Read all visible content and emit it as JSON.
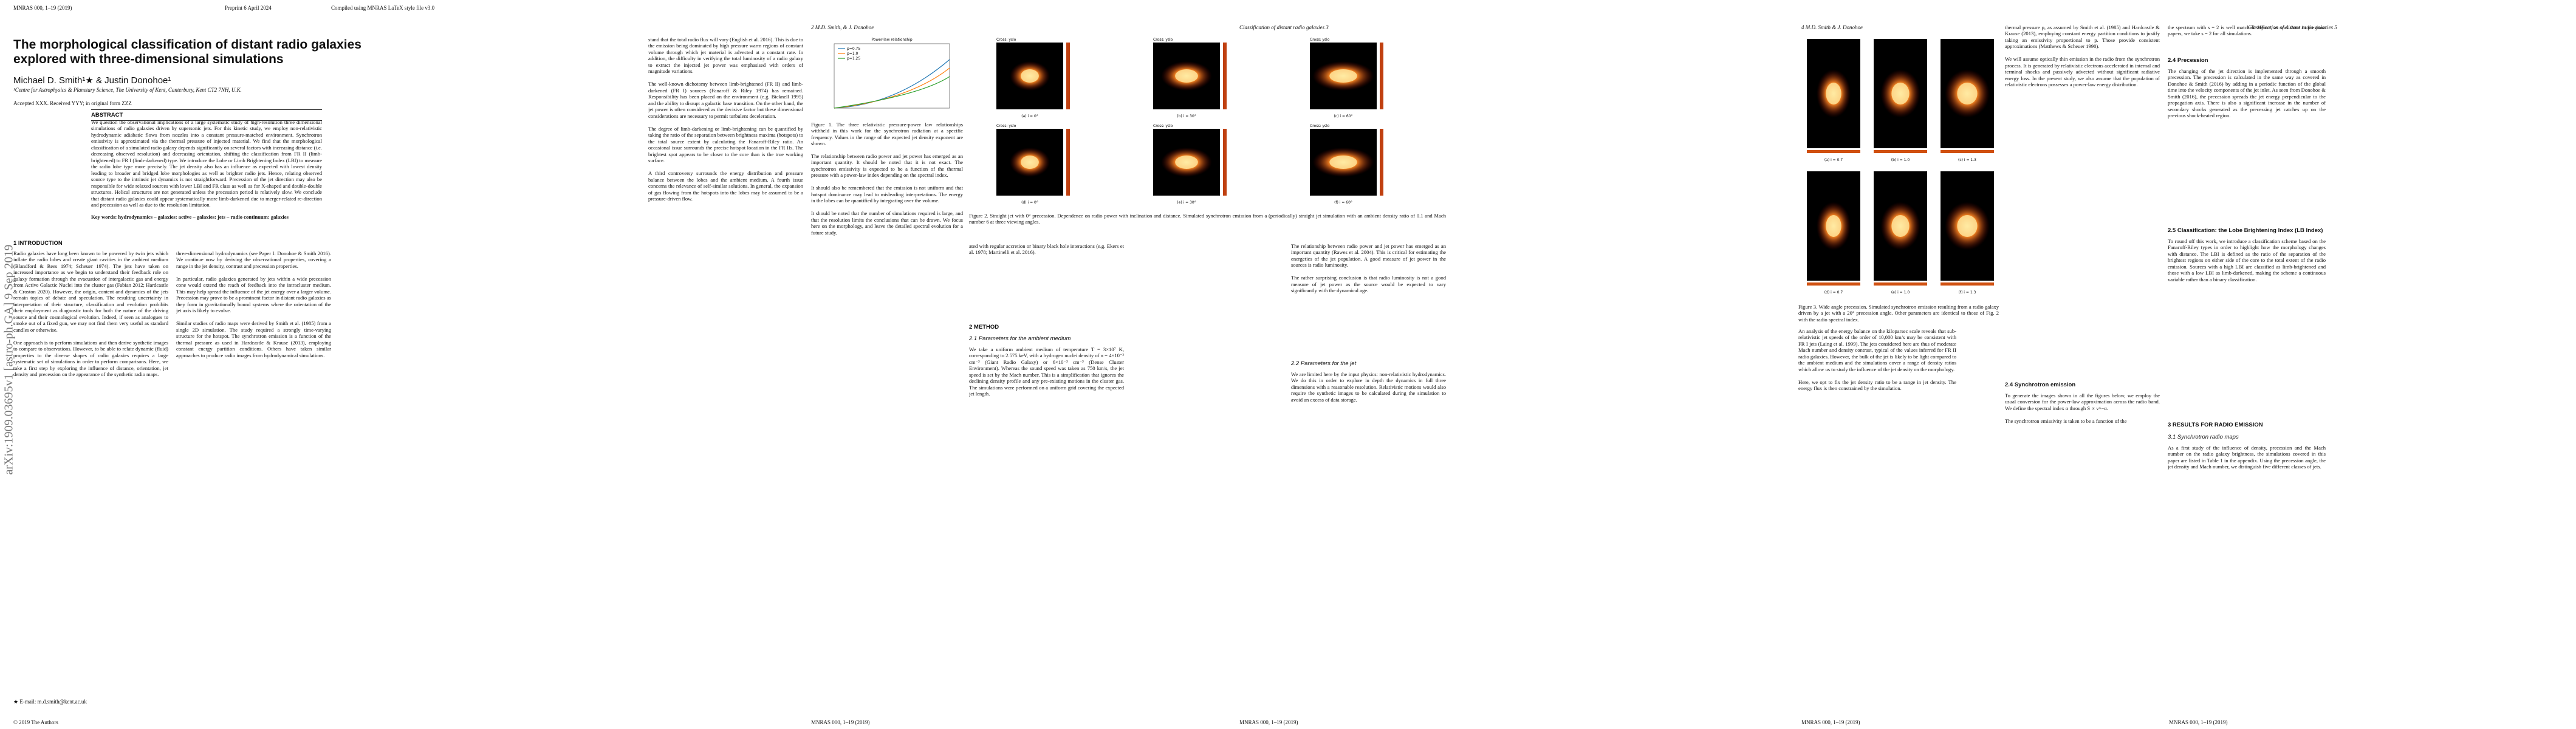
{
  "page1": {
    "header": {
      "journal": "MNRAS 000, 1–19 (2019)",
      "preprint": "Preprint 6 April 2024",
      "compiled": "Compiled using MNRAS LaTeX style file v3.0"
    },
    "title": "The morphological classification of distant radio galaxies explored with three-dimensional simulations",
    "authors": "Michael D. Smith¹★ & Justin Donohoe¹",
    "affiliation": "¹Centre for Astrophysics & Planetary Science, The University of Kent, Canterbury, Kent CT2 7NH, U.K.",
    "accepted": "Accepted XXX. Received YYY; in original form ZZZ",
    "abstract_heading": "ABSTRACT",
    "abstract": "We question the observational implications of a large systematic study of high-resolution three dimensional simulations of radio galaxies driven by supersonic jets. For this kinetic study, we employ non-relativistic hydrodynamic adiabatic flows from nozzles into a constant pressure-matched environment. Synchrotron emissivity is approximated via the thermal pressure of injected material. We find that the morphological classification of a simulated radio galaxy depends significantly on several factors with increasing distance (i.e. decreasing observed resolution) and decreasing orientation, shifting the classification from FR II (limb-brightened) to FR I (limb-darkened) type. We introduce the Lobe or Limb Brightening Index (LBI) to measure the radio lobe type more precisely. The jet density also has an influence as expected with lowest density leading to broader and bridged lobe morphologies as well as brighter radio jets. Hence, relating observed source type to the intrinsic jet dynamics is not straightforward. Precession of the jet direction may also be responsible for wide relaxed sources with lower LBI and FR class as well as for X-shaped and double-double structures. Helical structures are not generated unless the precession period is relatively slow. We conclude that distant radio galaxies could appear systematically more limb-darkened due to merger-related re-direction and precession as well as due to the resolution limitation.",
    "keywords": "Key words: hydrodynamics – galaxies: active – galaxies: jets – radio continuum: galaxies",
    "intro_heading": "1 INTRODUCTION",
    "intro_left": "Radio galaxies have long been known to be powered by twin jets which inflate the radio lobes and create giant cavities in the ambient medium (Blandford & Rees 1974; Scheuer 1974). The jets have taken on increased importance as we begin to understand their feedback role on galaxy formation through the evacuation of intergalactic gas and energy from Active Galactic Nuclei into the cluster gas (Fabian 2012; Hardcastle & Croston 2020). However, the origin, content and dynamics of the jets remain topics of debate and speculation. The resulting uncertainty in interpretation of their structure, classification and evolution prohibits their employment as diagnostic tools for both the nature of the driving source and their cosmological evolution. Indeed, if seen as analogues to smoke out of a fixed gun, we may not find them very useful as standard candles or otherwise.\n\nOne approach is to perform simulations and then derive synthetic images to compare to observations. However, to be able to relate dynamic (fluid) properties to the diverse shapes of radio galaxies requires a large systematic set of simulations in order to perform comparisons. Here, we take a first step by exploring the influence of distance, orientation, jet density and precession on the appearance of the synthetic radio maps.",
    "intro_right": "three-dimensional hydrodynamics (see Paper I: Donohoe & Smith 2016). We continue now by deriving the observational properties, covering a range in the jet density, contrast and precession properties.\n\nIn particular, radio galaxies generated by jets within a wide precession cone would extend the reach of feedback into the intracluster medium. This may help spread the influence of the jet energy over a larger volume. Precession may prove to be a prominent factor in distant radio galaxies as they form in gravitationally bound systems where the orientation of the jet axis is likely to evolve.\n\nSimilar studies of radio maps were derived by Smith et al. (1985) from a single 2D simulation. The study required a strongly time-varying structure for the hotspot. The synchrotron emission is a function of the thermal pressure as used in Hardcastle & Krause (2013), employing constant energy partition conditions. Others have taken similar approaches to produce radio images from hydrodynamical simulations.",
    "footnote": "★ E-mail: m.d.smith@kent.ac.uk",
    "copyright": "© 2019 The Authors",
    "arxiv": "arXiv:1909.03695v1 [astro-ph.GA] 9 Sep 2019"
  },
  "page2": {
    "header": "2     M.D. Smith, & J. Donohoe",
    "col_left": "stand that the total radio flux will vary (English et al. 2016). This is due to the emission being dominated by high pressure warm regions of constant volume through which jet material is advected at a constant rate. In addition, the difficulty in verifying the total luminosity of a radio galaxy to extract the injected jet power was emphasised with orders of magnitude variations.\n\nThe well-known dichotomy between limb-brightened (FR II) and limb-darkened (FR I) sources (Fanaroff & Riley 1974) has remained. Responsibility has been placed on the environment (e.g. Bicknell 1995) and the ability to disrupt a galactic base transition. On the other hand, the jet power is often considered as the decisive factor but these dimensional considerations are necessary to permit turbulent deceleration.\n\nThe degree of limb-darkening or limb-brightening can be quantified by taking the ratio of the separation between brightness maxima (hotspots) to the total source extent by calculating the Fanaroff-Riley ratio. An occasional issue surrounds the precise hotspot location in the FR IIs. The brightest spot appears to be closer to the core than is the true working surface.\n\nA third controversy surrounds the energy distribution and pressure balance between the lobes and the ambient medium. A fourth issue concerns the relevance of self-similar solutions. In general, the expansion of gas flowing from the hotspots into the lobes may be assumed to be a pressure-driven flow.",
    "fig1": {
      "title": "Power-law relationship",
      "legend": [
        "p=0.75",
        "p=1.0",
        "p=1.25"
      ],
      "caption": "Figure 1. The three relativistic pressure-power law relationships withheld in this work for the synchrotron radiation at a specific frequency. Values in the range of the expected jet density exponent are shown."
    },
    "col_right": "The relationship between radio power and jet power has emerged as an important quantity. It should be noted that it is not exact. The synchrotron emissivity is expected to be a function of the thermal pressure with a power-law index depending on the spectral index.\n\nIt should also be remembered that the emission is not uniform and that hotspot dominance may lead to misleading interpretations. The energy in the lobes can be quantified by integrating over the volume.\n\nIt should be noted that the number of simulations required is large, and that the resolution limits the conclusions that can be drawn. We focus here on the morphology, and leave the detailed spectral evolution for a future study."
  },
  "page3": {
    "header": "Classification of distant radio galaxies     3",
    "fig2": {
      "panel_title": "Cross: yslo",
      "labels": [
        "(a) i = 0°",
        "(b) i = 30°",
        "(c) i = 60°",
        "(d) i = 0°",
        "(e) i = 30°",
        "(f) i = 60°"
      ],
      "caption": "Figure 2. Straight jet with 0° precession. Dependence on radio power with inclination and distance. Simulated synchrotron emission from a (periodically) straight jet simulation with an ambient density ratio of 0.1 and Mach number 6 at three viewing angles."
    },
    "col_left": "ated with regular accretion or binary black hole interactions (e.g. Ekers et al. 1978; Martinelli et al. 2016).",
    "method_heading": "2 METHOD",
    "ambient_heading": "2.1 Parameters for the ambient medium",
    "ambient_text": "We take a uniform ambient medium of temperature T = 3×10⁷ K, corresponding to 2.575 keV, with a hydrogen nuclei density of n = 4×10⁻³ cm⁻³ (Giant Radio Galaxy) or 6×10⁻³ cm⁻³ (Dense Cluster Environment). Whereas the sound speed was taken as 750 km/s, the jet speed is set by the Mach number. This is a simplification that ignores the declining density profile and any pre-existing motions in the cluster gas. The simulations were performed on a uniform grid covering the expected jet length.",
    "col_right": "The relationship between radio power and jet power has emerged as an important quantity (Rawes et al. 2004). This is critical for estimating the energetics of the jet population. A good measure of jet power in the sources is radio luminosity.\n\nThe rather surprising conclusion is that radio luminosity is not a good measure of jet power as the source would be expected to vary significantly with the dynamical age.",
    "jet_heading": "2.2 Parameters for the jet",
    "jet_text": "We are limited here by the input physics: non-relativistic hydrodynamics. We do this in order to explore in depth the dynamics in full three dimensions with a reasonable resolution. Relativistic motions would also require the synthetic images to be calculated during the simulation to avoid an excess of data storage."
  },
  "page4": {
    "header": "4     M.D. Smith & J. Donohoe",
    "fig3": {
      "labels": [
        "(a) i = 0.7",
        "(b) i = 1.0",
        "(c) i = 1.3",
        "(d) i = 0.7",
        "(e) i = 1.0",
        "(f) i = 1.3"
      ],
      "caption": "Figure 3. Wide angle precession. Simulated synchrotron emission resulting from a radio galaxy driven by a jet with a 20° precession angle. Other parameters are identical to those of Fig. 2 with the radio spectral index."
    },
    "col_left": "An analysis of the energy balance on the kiloparsec scale reveals that sub-relativistic jet speeds of the order of 10,000 km/s may be consistent with FR I jets (Laing et al. 1999). The jets considered here are thus of moderate Mach number and density contrast, typical of the values inferred for FR II radio galaxies. However, the bulk of the jet is likely to be light compared to the ambient medium and the simulations cover a range of density ratios which allow us to study the influence of the jet density on the morphology.\n\nHere, we opt to fix the jet density ratio to be a range in jet density. The energy flux is then constrained by the simulation."
  },
  "page5": {
    "header": "Classification of distant radio galaxies     5",
    "col_far": "thermal pressure p, as assumed by Smith et al. (1985) and Hardcastle & Krause (2013), employing constant energy partition conditions to justify taking an emissivity proportional to p. Those provide consistent approximations (Matthews & Scheuer 1990).\n\nWe will assume optically thin emission in the radio from the synchrotron process. It is generated by relativistic electrons accelerated in internal and terminal shocks and passively advected without significant radiative energy loss. In the present study, we also assume that the population of relativistic electrons possesses a power-law energy distribution.",
    "synch_heading": "2.4 Synchrotron emission",
    "synch_text": "To generate the images shown in all the figures below, we employ the usual conversion for the power-law approximation across the radio band. We define the spectral index α through S ∝ ν^−α.\n\nThe synchrotron emissivity is taken to be a function of the",
    "col_right": "the spectrum with s = 2 is well matched. Hence, as was done in previous papers, we take s = 2 for all simulations.",
    "precession_heading": "2.4 Precession",
    "precession_text": "The changing of the jet direction is implemented through a smooth precession. The precession is calculated in the same way as covered in Donohoe & Smith (2016) by adding in a periodic function of the global time into the velocity components of the jet inlet. As seen from Donohoe & Smith (2016), the precession spreads the jet energy perpendicular to the propagation axis. There is also a significant increase in the number of secondary shocks generated as the precessing jet catches up on the previous shock-heated region.",
    "lbi_heading": "2.5 Classification: the Lobe Brightening Index (LB Index)",
    "lbi_text": "To round off this work, we introduce a classification scheme based on the Fanaroff-Riley types in order to highlight how the morphology changes with distance. The LBI is defined as the ratio of the separation of the brightest regions on either side of the core to the total extent of the radio emission. Sources with a high LBI are classified as limb-brightened and those with a low LBI as limb-darkened, making the scheme a continuous variable rather than a binary classification.",
    "results_heading": "3 RESULTS FOR RADIO EMISSION",
    "maps_heading": "3.1 Synchrotron radio maps",
    "maps_text": "As a first study of the influence of density, precession and the Mach number on the radio galaxy brightness, the simulations covered in this paper are listed in Table 1 in the appendix. Using the precession angle, the jet density and Mach number, we distinguish five different classes of jets."
  },
  "footer": "MNRAS 000, 1–19 (2019)"
}
